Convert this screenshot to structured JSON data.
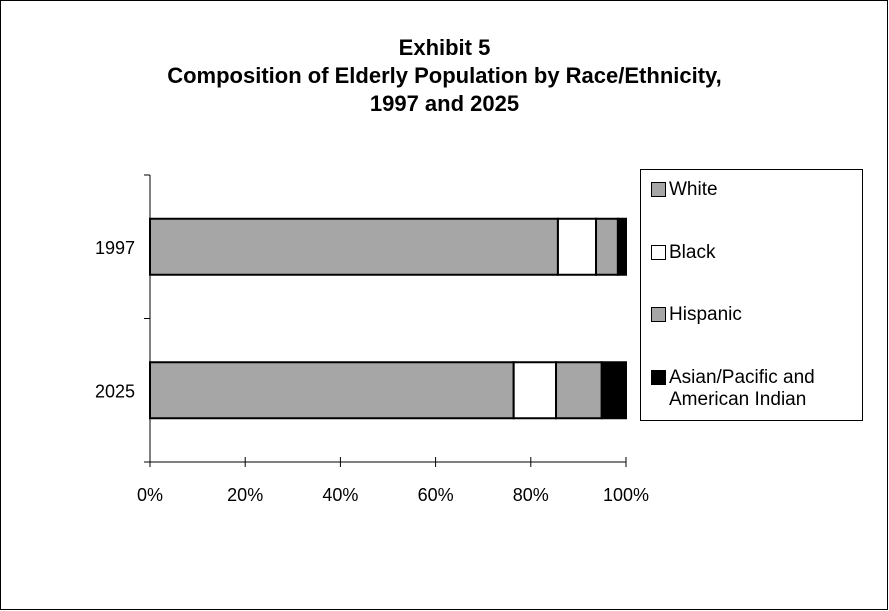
{
  "title": {
    "line1": "Exhibit 5",
    "line2": "Composition of Elderly Population by Race/Ethnicity,",
    "line3": "1997 and 2025"
  },
  "colors": {
    "White": "#a6a6a6",
    "Black": "#ffffff",
    "Hispanic": "#a6a6a6",
    "Asian/Pacific and American Indian": "#000000"
  },
  "chart_data": {
    "type": "bar",
    "orientation": "horizontal",
    "stacked": "percent",
    "categories": [
      "1997",
      "2025"
    ],
    "series": [
      {
        "name": "White",
        "values": [
          85.7,
          76.4
        ]
      },
      {
        "name": "Black",
        "values": [
          8.0,
          8.9
        ]
      },
      {
        "name": "Hispanic",
        "values": [
          4.6,
          9.6
        ]
      },
      {
        "name": "Asian/Pacific and American Indian",
        "values": [
          1.7,
          5.1
        ]
      }
    ],
    "x_ticks": [
      "0%",
      "20%",
      "40%",
      "60%",
      "80%",
      "100%"
    ],
    "xlim": [
      0,
      100
    ],
    "legend_position": "right",
    "grid": false
  },
  "legend": {
    "items": [
      {
        "label": "White",
        "color": "#a6a6a6"
      },
      {
        "label": "Black",
        "color": "#ffffff"
      },
      {
        "label": "Hispanic",
        "color": "#a6a6a6"
      },
      {
        "label_line1": "Asian/Pacific and",
        "label_line2": "American Indian",
        "color": "#000000"
      }
    ]
  }
}
